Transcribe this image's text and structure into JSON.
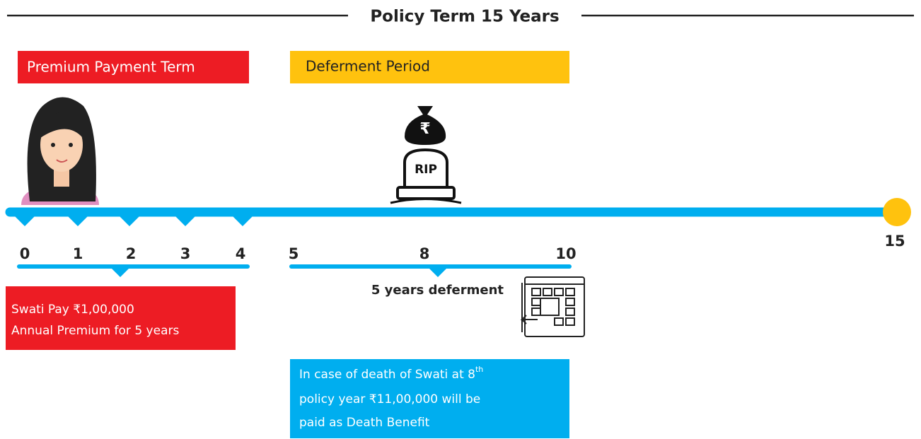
{
  "title": "Policy Term 15 Years",
  "bands": [
    {
      "label": "Premium Payment Term"
    },
    {
      "label": "Deferment Period"
    }
  ],
  "icons": {
    "money_bag": "₹",
    "tombstone": "RIP"
  },
  "timeline": {
    "ticks": [
      "0",
      "1",
      "2",
      "3",
      "4",
      "5",
      "8",
      "10",
      "15"
    ]
  },
  "deferment_label": "5 years deferment",
  "premium_note": {
    "lines": [
      "Swati Pay ₹1,00,000",
      "Annual Premium for 5 years"
    ]
  },
  "death_note": {
    "line1": "In case of death of Swati at 8",
    "sup": "th",
    "lines": [
      "policy year ₹11,00,000 will be",
      "paid as Death Benefit"
    ]
  }
}
